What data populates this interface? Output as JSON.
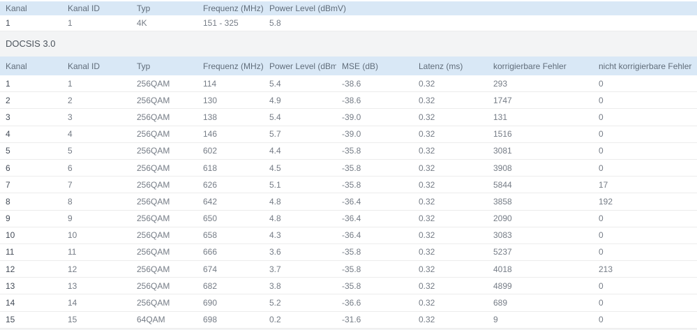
{
  "page": {
    "background_color": "#f3f4f5",
    "header_bg_color": "#d9e8f6",
    "header_text_color": "#616d7a",
    "cell_text_color": "#757c86"
  },
  "upstream_table": {
    "columns": [
      "Kanal",
      "Kanal ID",
      "Typ",
      "Frequenz (MHz)",
      "Power Level (dBmV)"
    ],
    "rows": [
      [
        "1",
        "1",
        "4K",
        "151 - 325",
        "5.8"
      ]
    ]
  },
  "section": {
    "title": "DOCSIS 3.0"
  },
  "docsis_table": {
    "columns": [
      "Kanal",
      "Kanal ID",
      "Typ",
      "Frequenz (MHz)",
      "Power Level (dBmV)",
      "MSE (dB)",
      "Latenz (ms)",
      "korrigierbare Fehler",
      "nicht korrigierbare Fehler"
    ],
    "rows": [
      [
        "1",
        "1",
        "256QAM",
        "114",
        "5.4",
        "-38.6",
        "0.32",
        "293",
        "0"
      ],
      [
        "2",
        "2",
        "256QAM",
        "130",
        "4.9",
        "-38.6",
        "0.32",
        "1747",
        "0"
      ],
      [
        "3",
        "3",
        "256QAM",
        "138",
        "5.4",
        "-39.0",
        "0.32",
        "131",
        "0"
      ],
      [
        "4",
        "4",
        "256QAM",
        "146",
        "5.7",
        "-39.0",
        "0.32",
        "1516",
        "0"
      ],
      [
        "5",
        "5",
        "256QAM",
        "602",
        "4.4",
        "-35.8",
        "0.32",
        "3081",
        "0"
      ],
      [
        "6",
        "6",
        "256QAM",
        "618",
        "4.5",
        "-35.8",
        "0.32",
        "3908",
        "0"
      ],
      [
        "7",
        "7",
        "256QAM",
        "626",
        "5.1",
        "-35.8",
        "0.32",
        "5844",
        "17"
      ],
      [
        "8",
        "8",
        "256QAM",
        "642",
        "4.8",
        "-36.4",
        "0.32",
        "3858",
        "192"
      ],
      [
        "9",
        "9",
        "256QAM",
        "650",
        "4.8",
        "-36.4",
        "0.32",
        "2090",
        "0"
      ],
      [
        "10",
        "10",
        "256QAM",
        "658",
        "4.3",
        "-36.4",
        "0.32",
        "3083",
        "0"
      ],
      [
        "11",
        "11",
        "256QAM",
        "666",
        "3.6",
        "-35.8",
        "0.32",
        "5237",
        "0"
      ],
      [
        "12",
        "12",
        "256QAM",
        "674",
        "3.7",
        "-35.8",
        "0.32",
        "4018",
        "213"
      ],
      [
        "13",
        "13",
        "256QAM",
        "682",
        "3.8",
        "-35.8",
        "0.32",
        "4899",
        "0"
      ],
      [
        "14",
        "14",
        "256QAM",
        "690",
        "5.2",
        "-36.6",
        "0.32",
        "689",
        "0"
      ],
      [
        "15",
        "15",
        "64QAM",
        "698",
        "0.2",
        "-31.6",
        "0.32",
        "9",
        "0"
      ]
    ]
  }
}
